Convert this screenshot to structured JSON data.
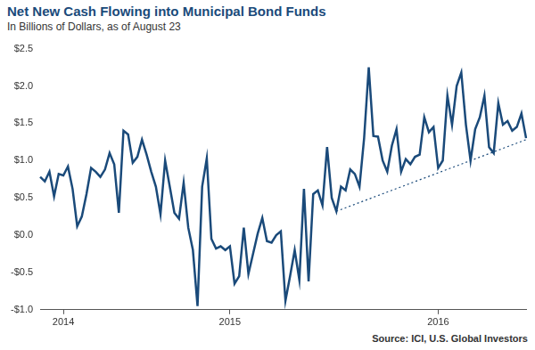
{
  "chart_data": {
    "type": "line",
    "title": "Net New Cash Flowing into Municipal Bond Funds",
    "subtitle": "In Billions of Dollars, as of August 23",
    "source": "Source: ICI, U.S. Global Investors",
    "categories": [
      null,
      null,
      null,
      null,
      null,
      "2014",
      null,
      null,
      null,
      null,
      null,
      null,
      null,
      null,
      null,
      null,
      null,
      null,
      null,
      null,
      null,
      null,
      null,
      null,
      null,
      null,
      null,
      null,
      null,
      null,
      null,
      null,
      null,
      null,
      null,
      null,
      null,
      null,
      null,
      null,
      null,
      "2015",
      null,
      null,
      null,
      null,
      null,
      null,
      null,
      null,
      null,
      null,
      null,
      null,
      null,
      null,
      null,
      null,
      null,
      null,
      null,
      null,
      null,
      null,
      null,
      null,
      null,
      null,
      null,
      null,
      null,
      null,
      null,
      null,
      null,
      null,
      null,
      null,
      null,
      null,
      null,
      null,
      null,
      null,
      null,
      null,
      "2016",
      null,
      null,
      null,
      null,
      null,
      null,
      null,
      null,
      null,
      null,
      null,
      null,
      null,
      null,
      null,
      null,
      null,
      null,
      null
    ],
    "series": [
      {
        "color": "#1a4a7a",
        "line_style": "solid",
        "values": [
          0.78,
          0.72,
          0.85,
          0.52,
          0.82,
          0.8,
          0.92,
          0.62,
          0.12,
          0.25,
          0.55,
          0.9,
          0.85,
          0.78,
          0.88,
          1.1,
          0.95,
          0.3,
          1.4,
          1.35,
          0.97,
          1.05,
          1.28,
          1.08,
          0.85,
          0.65,
          0.28,
          1.0,
          0.65,
          0.3,
          0.22,
          0.7,
          0.1,
          -0.2,
          -0.95,
          0.65,
          1.03,
          -0.05,
          -0.18,
          -0.15,
          -0.2,
          -0.15,
          -0.65,
          -0.55,
          0.1,
          -0.52,
          -0.25,
          0.02,
          0.23,
          -0.08,
          -0.1,
          0.0,
          0.05,
          -0.88,
          -0.55,
          -0.2,
          -0.6,
          0.62,
          -0.62,
          0.55,
          0.6,
          0.4,
          1.18,
          0.5,
          0.32,
          0.65,
          0.6,
          0.88,
          0.82,
          0.65,
          1.3,
          2.25,
          1.33,
          1.32,
          1.0,
          0.85,
          1.2,
          1.42,
          0.85,
          1.02,
          0.95,
          1.05,
          1.08,
          1.58,
          1.38,
          1.45,
          0.9,
          1.0,
          1.87,
          1.48,
          2.0,
          2.18,
          1.48,
          1.0,
          1.42,
          1.58,
          1.87,
          1.18,
          1.1,
          1.77,
          1.48,
          1.53,
          1.4,
          1.45,
          1.63,
          1.3
        ]
      },
      {
        "color": "#1a4a7a",
        "line_style": "dotted",
        "values": [
          null,
          null,
          null,
          null,
          null,
          null,
          null,
          null,
          null,
          null,
          null,
          null,
          null,
          null,
          null,
          null,
          null,
          null,
          null,
          null,
          null,
          null,
          null,
          null,
          null,
          null,
          null,
          null,
          null,
          null,
          null,
          null,
          null,
          null,
          null,
          null,
          null,
          null,
          null,
          null,
          null,
          null,
          null,
          null,
          null,
          null,
          null,
          null,
          null,
          null,
          null,
          null,
          null,
          null,
          null,
          null,
          null,
          null,
          null,
          null,
          null,
          null,
          null,
          null,
          0.32,
          null,
          null,
          null,
          null,
          null,
          null,
          null,
          null,
          null,
          null,
          null,
          null,
          null,
          null,
          null,
          null,
          null,
          null,
          null,
          null,
          null,
          null,
          null,
          null,
          null,
          null,
          null,
          null,
          null,
          null,
          null,
          null,
          null,
          null,
          null,
          null,
          null,
          null,
          null,
          null,
          1.28
        ]
      }
    ],
    "ylim": [
      -1.0,
      2.5
    ],
    "yticks": [
      {
        "value": -1.0,
        "label": "-$1.0"
      },
      {
        "value": -0.5,
        "label": "-$0.5"
      },
      {
        "value": 0.0,
        "label": "$0.0"
      },
      {
        "value": 0.5,
        "label": "$0.5"
      },
      {
        "value": 1.0,
        "label": "$1.0"
      },
      {
        "value": 1.5,
        "label": "$1.5"
      },
      {
        "value": 2.0,
        "label": "$2.0"
      },
      {
        "value": 2.5,
        "label": "$2.5"
      }
    ],
    "grid": false
  }
}
